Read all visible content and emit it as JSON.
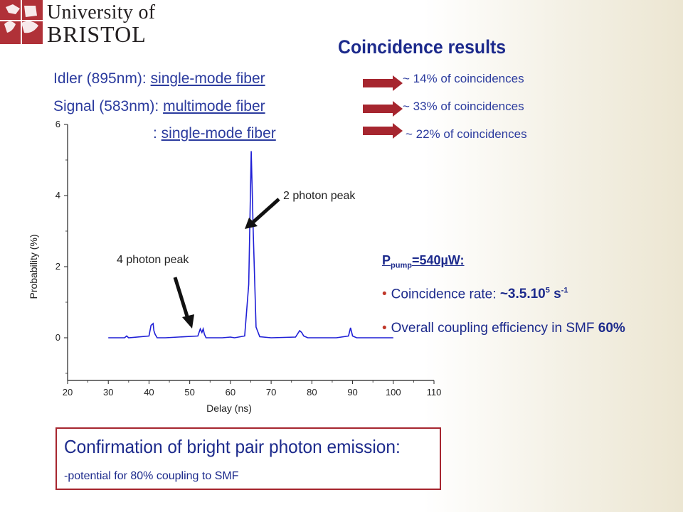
{
  "logo": {
    "line1": "University of",
    "line2": "BRISTOL"
  },
  "title": "Coincidence results",
  "fibers": {
    "idler_label": "Idler (895nm): ",
    "idler_link": "single-mode fiber",
    "signal_label": "Signal (583nm): ",
    "signal_link": "multimode fiber",
    "signal2_label": ": ",
    "signal2_link": "single-mode fiber"
  },
  "results": [
    "~ 14% of coincidences",
    "~  33% of coincidences",
    "~  22% of coincidences"
  ],
  "colors": {
    "arrow_red": "#a6262f",
    "text_blue": "#1c2a8c",
    "curve_blue": "#1f1fd6"
  },
  "annotations": {
    "peak2": "2 photon peak",
    "peak4": "4 photon peak"
  },
  "info": {
    "pump_p": "P",
    "pump_sub": "pump",
    "pump_val": "=540µW:",
    "rate_label": "Coincidence rate: ",
    "rate_value": "~3.5.10",
    "rate_exp": "5",
    "rate_unit": " s",
    "rate_unit_exp": "-1",
    "eff_label": "Overall coupling efficiency in SMF ",
    "eff_value": "60%"
  },
  "conclusion": {
    "title": "Confirmation of bright pair photon emission:",
    "subtitle": "-potential for 80% coupling to SMF"
  },
  "chart_data": {
    "type": "line",
    "xlabel": "Delay (ns)",
    "ylabel": "Probability (%)",
    "xlim": [
      20,
      110
    ],
    "ylim": [
      -1.2,
      6
    ],
    "xticks": [
      20,
      30,
      40,
      50,
      60,
      70,
      80,
      90,
      100,
      110
    ],
    "yticks": [
      0,
      2,
      4,
      6
    ],
    "series": [
      {
        "x": [
          30,
          34,
          34.5,
          35,
          40,
          40.5,
          41,
          41.2,
          41.5,
          42,
          44,
          52,
          52.6,
          53,
          53.3,
          53.6,
          54,
          58,
          60,
          61,
          63.5,
          64.5,
          65.1,
          65.6,
          66.3,
          67.2,
          70,
          76,
          77,
          77.5,
          78,
          79,
          86,
          89,
          89.5,
          90,
          91,
          100
        ],
        "y": [
          0,
          0,
          0.05,
          0,
          0.05,
          0.35,
          0.4,
          0.2,
          0.1,
          0,
          0,
          0.05,
          0.25,
          0.15,
          0.25,
          0.1,
          0,
          0,
          0.02,
          0,
          0.05,
          1.5,
          5.25,
          3,
          0.3,
          0.03,
          0,
          0.02,
          0.2,
          0.15,
          0.05,
          0,
          0,
          0.05,
          0.28,
          0.05,
          0,
          0
        ]
      }
    ]
  }
}
